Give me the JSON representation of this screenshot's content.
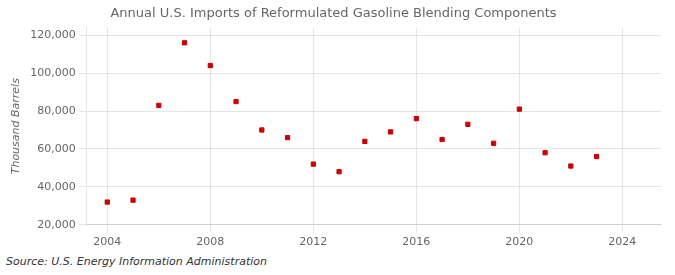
{
  "chart_data": {
    "type": "scatter",
    "title": "Annual U.S. Imports of Reformulated Gasoline Blending Components",
    "ylabel": "Thousand Barrels",
    "annotations": [
      "Source: U.S. Energy Information Administration"
    ],
    "x": [
      2004,
      2005,
      2006,
      2007,
      2008,
      2009,
      2010,
      2011,
      2012,
      2013,
      2014,
      2015,
      2016,
      2017,
      2018,
      2019,
      2020,
      2021,
      2022,
      2023
    ],
    "values": [
      32000,
      33000,
      83000,
      116000,
      104000,
      85000,
      70000,
      66000,
      52000,
      48000,
      64000,
      69000,
      76000,
      65000,
      73000,
      63000,
      81000,
      58000,
      51000,
      56000
    ],
    "color": "#cc0000",
    "marker": "square",
    "xlim": [
      2003.2,
      2025.5
    ],
    "ylim": [
      20000,
      124000
    ],
    "xticks": [
      2004,
      2008,
      2012,
      2016,
      2020,
      2024
    ],
    "yticks": [
      {
        "value": 20000,
        "label": "20,000"
      },
      {
        "value": 40000,
        "label": "40,000"
      },
      {
        "value": 60000,
        "label": "60,000"
      },
      {
        "value": 80000,
        "label": "80,000"
      },
      {
        "value": 100000,
        "label": "100,000"
      },
      {
        "value": 120000,
        "label": "120,000"
      }
    ],
    "grid": true
  }
}
